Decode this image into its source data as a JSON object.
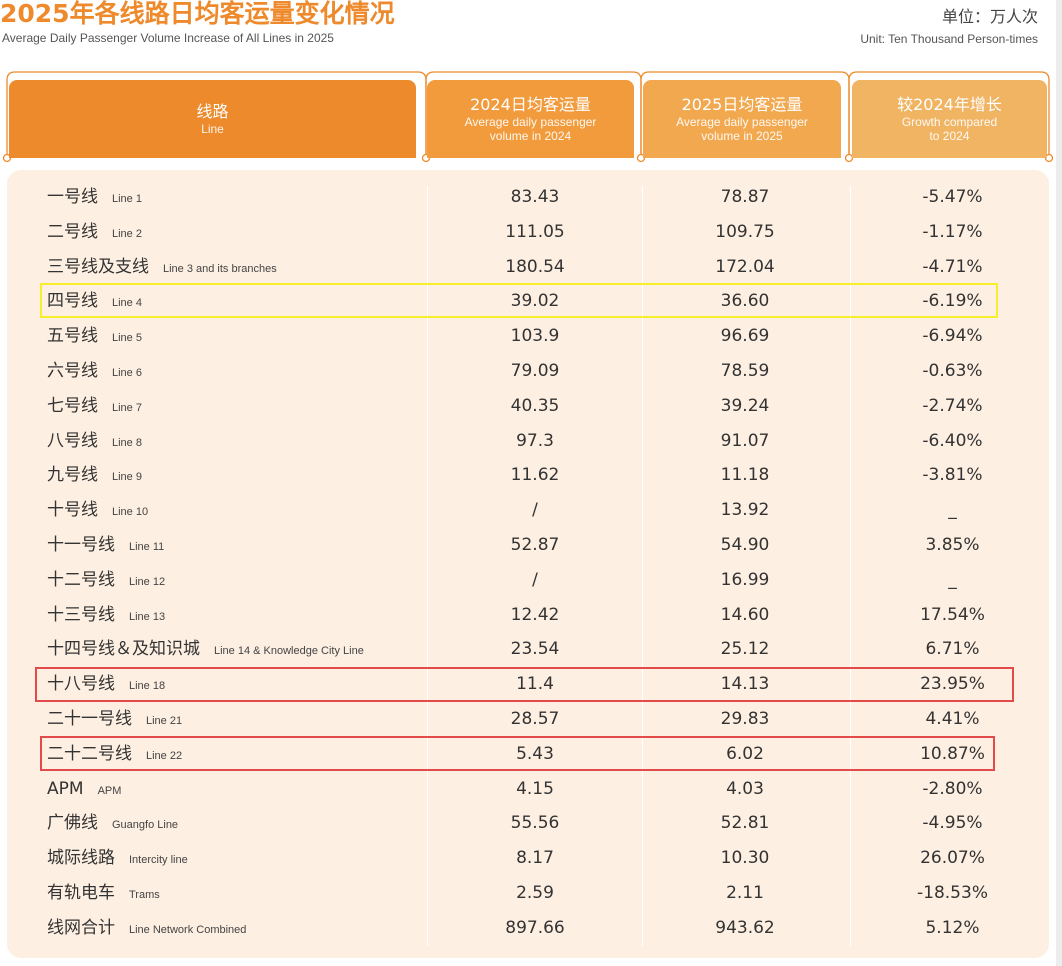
{
  "header": {
    "title_zh": "2025年各线路日均客运量变化情况",
    "title_en": "Average Daily Passenger Volume Increase of All Lines in 2025",
    "unit_zh": "单位：万人次",
    "unit_en": "Unit: Ten Thousand Person-times"
  },
  "columns": {
    "line": {
      "zh": "线路",
      "en": "Line"
    },
    "y2024": {
      "zh": "2024日均客运量",
      "en1": "Average daily passenger",
      "en2": "volume in 2024"
    },
    "y2025": {
      "zh": "2025日均客运量",
      "en1": "Average daily passenger",
      "en2": "volume in 2025"
    },
    "growth": {
      "zh": "较2024年增长",
      "en1": "Growth compared",
      "en2": "to 2024"
    }
  },
  "rows": [
    {
      "zh": "一号线",
      "en": "Line 1",
      "y2024": "83.43",
      "y2025": "78.87",
      "growth": "-5.47%"
    },
    {
      "zh": "二号线",
      "en": "Line 2",
      "y2024": "111.05",
      "y2025": "109.75",
      "growth": "-1.17%"
    },
    {
      "zh": "三号线及支线",
      "en": "Line 3 and its branches",
      "y2024": "180.54",
      "y2025": "172.04",
      "growth": "-4.71%"
    },
    {
      "zh": "四号线",
      "en": "Line 4",
      "y2024": "39.02",
      "y2025": "36.60",
      "growth": "-6.19%"
    },
    {
      "zh": "五号线",
      "en": "Line 5",
      "y2024": "103.9",
      "y2025": "96.69",
      "growth": "-6.94%"
    },
    {
      "zh": "六号线",
      "en": "Line 6",
      "y2024": "79.09",
      "y2025": "78.59",
      "growth": "-0.63%"
    },
    {
      "zh": "七号线",
      "en": "Line 7",
      "y2024": "40.35",
      "y2025": "39.24",
      "growth": "-2.74%"
    },
    {
      "zh": "八号线",
      "en": "Line 8",
      "y2024": "97.3",
      "y2025": "91.07",
      "growth": "-6.40%"
    },
    {
      "zh": "九号线",
      "en": "Line 9",
      "y2024": "11.62",
      "y2025": "11.18",
      "growth": "-3.81%"
    },
    {
      "zh": "十号线",
      "en": "Line 10",
      "y2024": "/",
      "y2025": "13.92",
      "growth": "_"
    },
    {
      "zh": "十一号线",
      "en": "Line 11",
      "y2024": "52.87",
      "y2025": "54.90",
      "growth": "3.85%"
    },
    {
      "zh": "十二号线",
      "en": "Line 12",
      "y2024": "/",
      "y2025": "16.99",
      "growth": "_"
    },
    {
      "zh": "十三号线",
      "en": "Line 13",
      "y2024": "12.42",
      "y2025": "14.60",
      "growth": "17.54%"
    },
    {
      "zh": "十四号线＆及知识城",
      "en": "Line 14 & Knowledge City Line",
      "y2024": "23.54",
      "y2025": "25.12",
      "growth": "6.71%"
    },
    {
      "zh": "十八号线",
      "en": "Line 18",
      "y2024": "11.4",
      "y2025": "14.13",
      "growth": "23.95%"
    },
    {
      "zh": "二十一号线",
      "en": "Line 21",
      "y2024": "28.57",
      "y2025": "29.83",
      "growth": "4.41%"
    },
    {
      "zh": "二十二号线",
      "en": "Line 22",
      "y2024": "5.43",
      "y2025": "6.02",
      "growth": "10.87%"
    },
    {
      "zh": "APM",
      "en": "APM",
      "y2024": "4.15",
      "y2025": "4.03",
      "growth": "-2.80%"
    },
    {
      "zh": "广佛线",
      "en": "Guangfo Line",
      "y2024": "55.56",
      "y2025": "52.81",
      "growth": "-4.95%"
    },
    {
      "zh": "城际线路",
      "en": "Intercity line",
      "y2024": "8.17",
      "y2025": "10.30",
      "growth": "26.07%"
    },
    {
      "zh": "有轨电车",
      "en": "Trams",
      "y2024": "2.59",
      "y2025": "2.11",
      "growth": "-18.53%"
    },
    {
      "zh": "线网合计",
      "en": "Line Network Combined",
      "y2024": "897.66",
      "y2025": "943.62",
      "growth": "5.12%"
    }
  ],
  "highlights": {
    "yellow": "#f7ef2a",
    "red": "#e34b4b"
  },
  "colors": {
    "title": "#ee8a2b",
    "header_line": "#ec8a2c",
    "header_2024": "#f19b3c",
    "header_2025": "#f2a84f",
    "header_growth": "#f0b463",
    "table_bg": "#fdefe2"
  }
}
